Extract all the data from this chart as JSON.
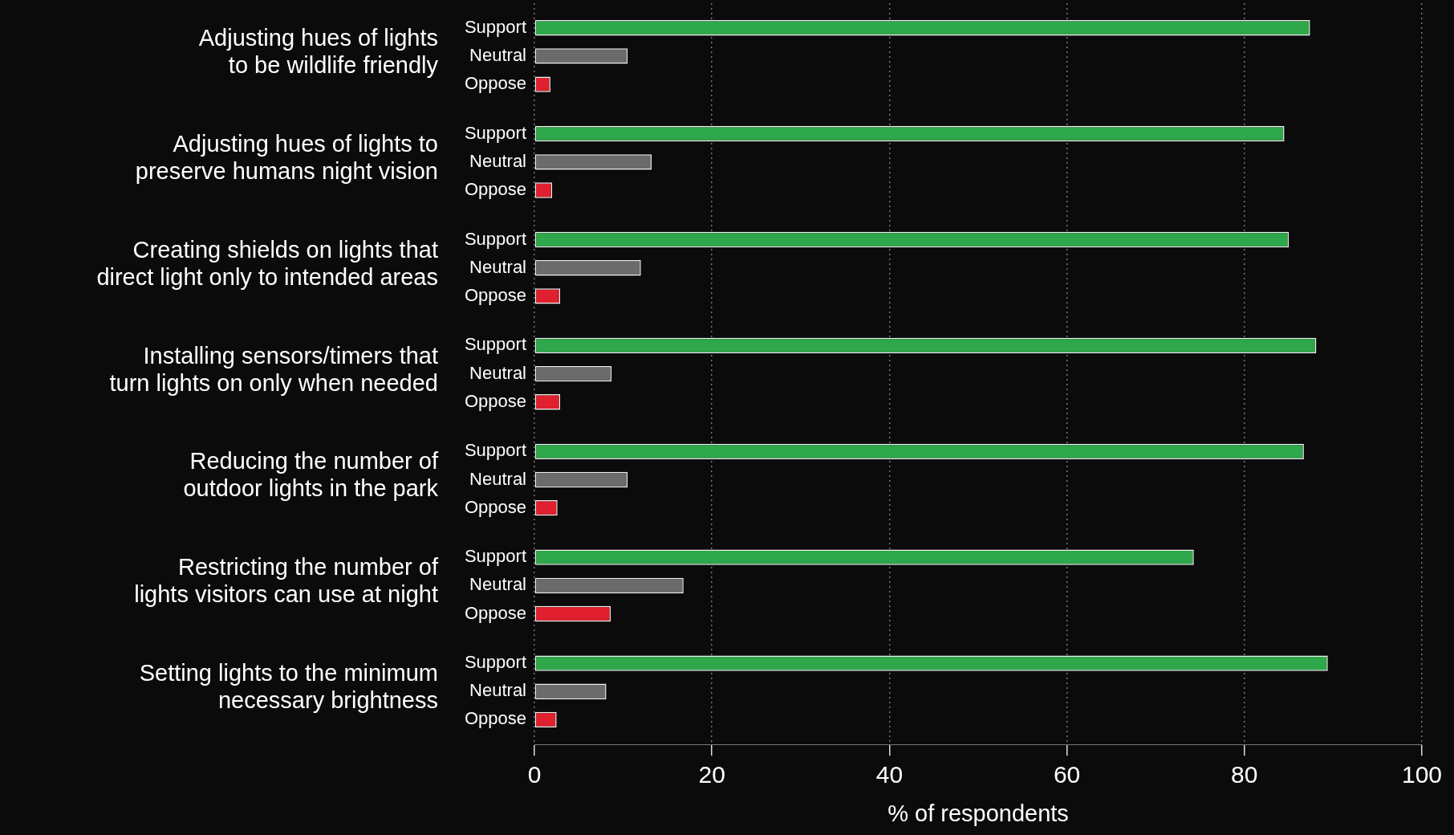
{
  "chart_data": {
    "type": "bar",
    "orientation": "horizontal",
    "xlabel": "% of respondents",
    "categories": [
      "Adjusting hues of lights to be wildlife friendly",
      "Adjusting hues of lights to preserve humans night vision",
      "Creating shields on lights that direct light only to intended areas",
      "Installing sensors/timers that turn lights on only when needed",
      "Reducing the number of outdoor lights in the park",
      "Restricting the number of lights visitors can use at night",
      "Setting lights to the minimum necessary brightness"
    ],
    "series": [
      {
        "name": "Support",
        "color": "#2ea84a",
        "values": [
          87.4,
          84.5,
          85.0,
          88.1,
          86.7,
          74.3,
          89.4
        ]
      },
      {
        "name": "Neutral",
        "color": "#6b6b6b",
        "values": [
          10.5,
          13.2,
          12.0,
          8.7,
          10.5,
          16.8,
          8.1
        ]
      },
      {
        "name": "Oppose",
        "color": "#e0202e",
        "values": [
          1.8,
          2.0,
          2.9,
          2.9,
          2.6,
          8.6,
          2.5
        ]
      }
    ],
    "xlim": [
      0,
      100
    ],
    "xticks": [
      0,
      20,
      40,
      60,
      80,
      100
    ],
    "grid": "x",
    "legend": false
  }
}
